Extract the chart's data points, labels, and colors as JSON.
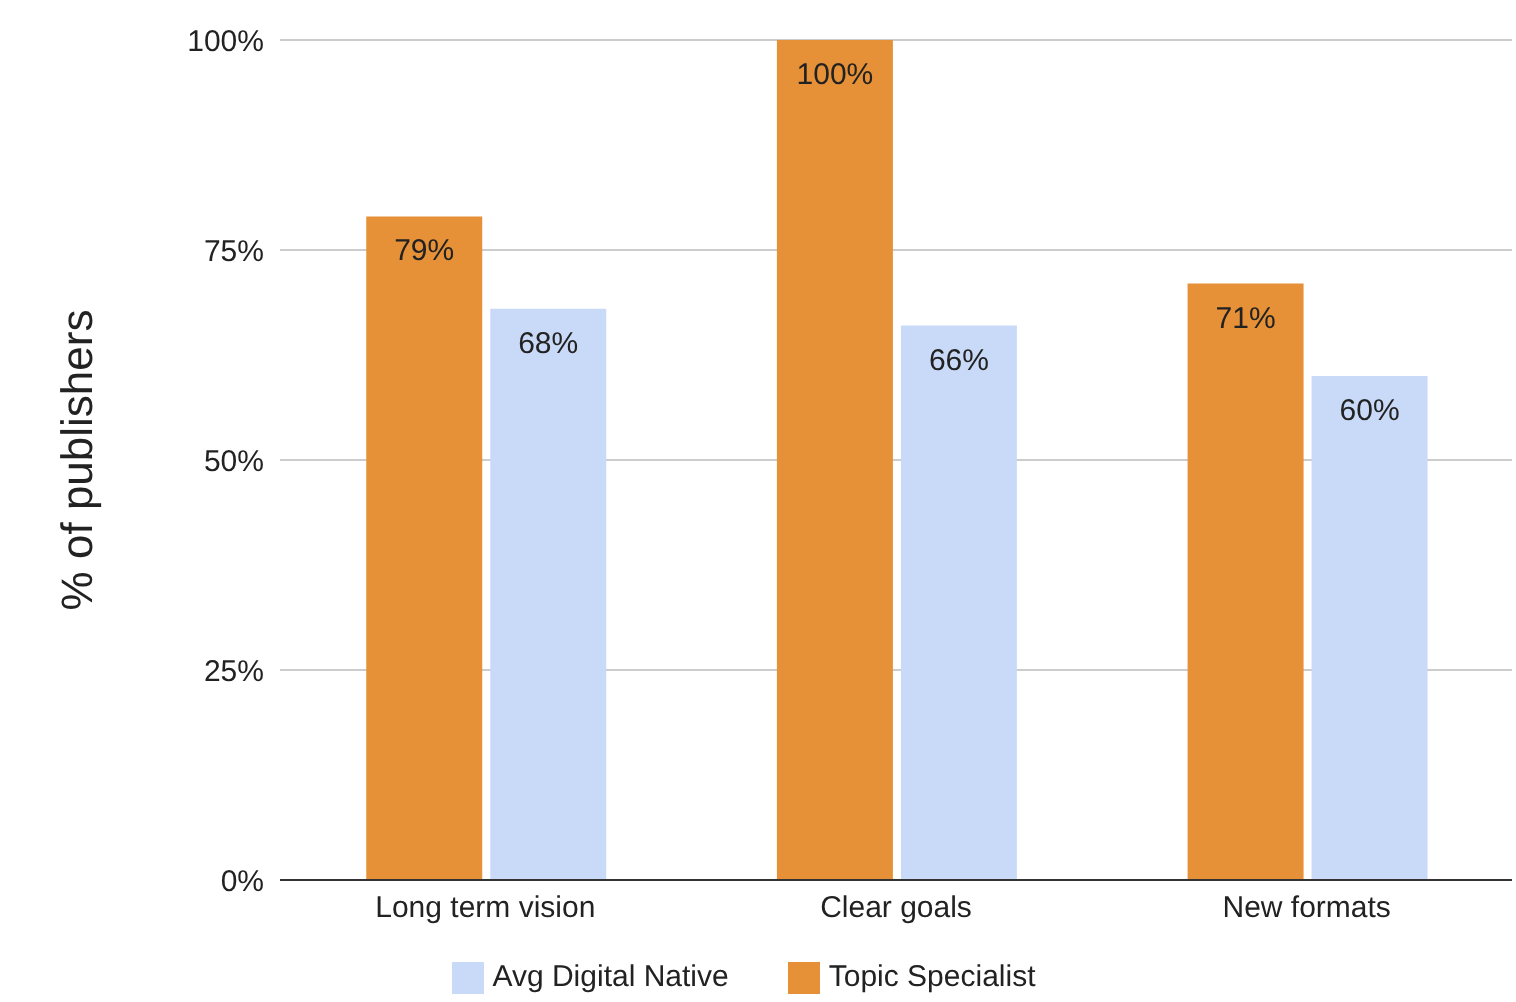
{
  "chart_data": {
    "type": "bar",
    "ylabel": "% of publishers",
    "categories": [
      "Long term vision",
      "Clear goals",
      "New formats"
    ],
    "series": [
      {
        "name": "Topic Specialist",
        "color": "#e69138",
        "values": [
          79,
          100,
          71
        ],
        "value_labels": [
          "79%",
          "100%",
          "71%"
        ]
      },
      {
        "name": "Avg Digital Native",
        "color": "#c9daf8",
        "values": [
          68,
          66,
          60
        ],
        "value_labels": [
          "68%",
          "66%",
          "60%"
        ]
      }
    ],
    "ylim": [
      0,
      100
    ],
    "yticks": [
      {
        "value": 0,
        "label": "0%"
      },
      {
        "value": 25,
        "label": "25%"
      },
      {
        "value": 50,
        "label": "50%"
      },
      {
        "value": 75,
        "label": "75%"
      },
      {
        "value": 100,
        "label": "100%"
      }
    ],
    "grid": "y",
    "legend": "bottom"
  }
}
